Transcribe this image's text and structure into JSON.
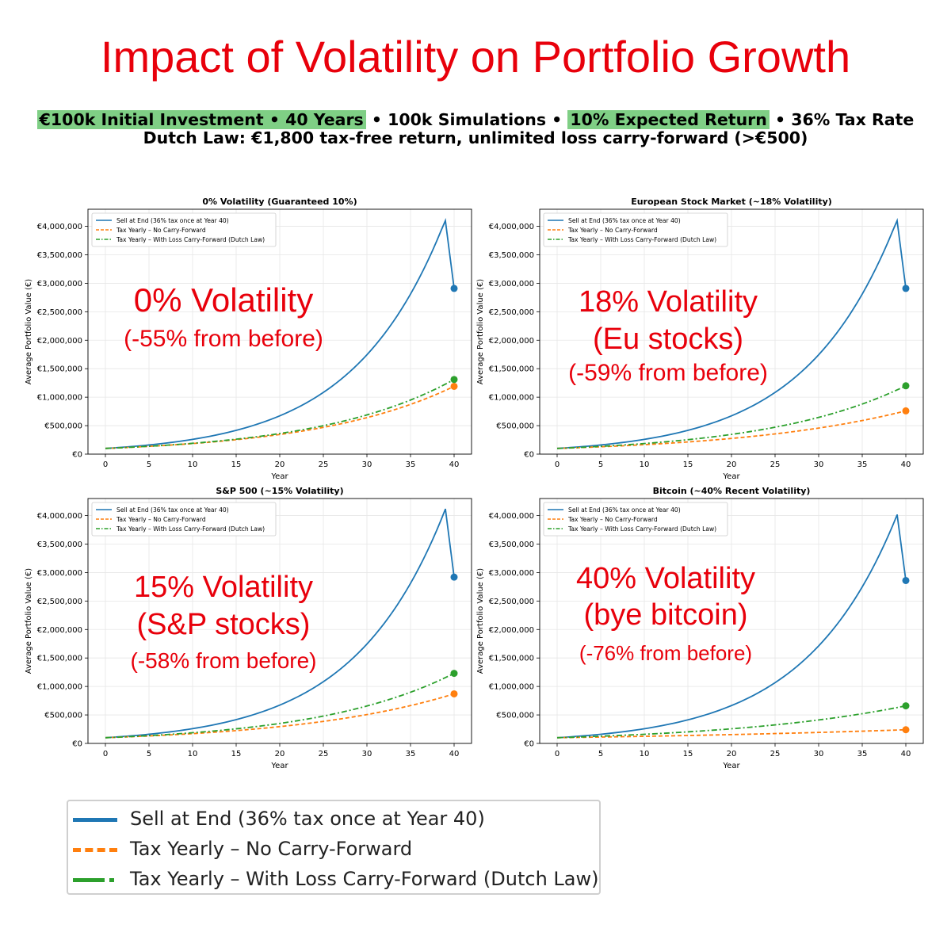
{
  "title": "Impact of Volatility on Portfolio Growth",
  "subtitle_line1": {
    "hl1": "€100k Initial Investment • 40 Years",
    "mid": " • 100k Simulations • ",
    "hl2": "10% Expected Return",
    "end": " • 36% Tax Rate"
  },
  "subtitle_line2": "Dutch Law: €1,800 tax-free return, unlimited loss carry-forward (>€500)",
  "colors": {
    "sell": "#1f77b4",
    "no_carry": "#ff7f0e",
    "carry": "#2ca02c",
    "annotation": "#e8000b",
    "highlight": "#7fcf85"
  },
  "legend": [
    {
      "label": "Sell at End (36% tax once at Year 40)",
      "color": "#1f77b4",
      "style": "solid"
    },
    {
      "label": "Tax Yearly – No Carry-Forward",
      "color": "#ff7f0e",
      "style": "dashed"
    },
    {
      "label": "Tax Yearly – With Loss Carry-Forward (Dutch Law)",
      "color": "#2ca02c",
      "style": "dashdot"
    }
  ],
  "chart_data": [
    {
      "type": "line",
      "title": "0% Volatility (Guaranteed 10%)",
      "xlabel": "Year",
      "ylabel": "Average Portfolio Value (€)",
      "xlim": [
        0,
        40
      ],
      "ylim": [
        0,
        4300000
      ],
      "xticks": [
        0,
        5,
        10,
        15,
        20,
        25,
        30,
        35,
        40
      ],
      "yticks": [
        0,
        500000,
        1000000,
        1500000,
        2000000,
        2500000,
        3000000,
        3500000,
        4000000
      ],
      "ytick_labels": [
        "€0",
        "€500,000",
        "€1,000,000",
        "€1,500,000",
        "€2,000,000",
        "€2,500,000",
        "€3,000,000",
        "€3,500,000",
        "€4,000,000"
      ],
      "grid": true,
      "legend_position": "upper-left",
      "series": [
        {
          "name": "Sell at End (36% tax once at Year 40)",
          "growth": 0.1,
          "peak_year": 39,
          "peak_value": 4100000,
          "end_value": 2910000
        },
        {
          "name": "Tax Yearly – No Carry-Forward",
          "growth": 0.0654,
          "end_value": 1190000
        },
        {
          "name": "Tax Yearly – With Loss Carry-Forward (Dutch Law)",
          "growth": 0.0672,
          "end_value": 1310000
        }
      ],
      "annotation": [
        "0% Volatility",
        "(-55% from before)"
      ]
    },
    {
      "type": "line",
      "title": "European Stock Market (~18% Volatility)",
      "xlabel": "Year",
      "ylabel": "Average Portfolio Value (€)",
      "xlim": [
        0,
        40
      ],
      "ylim": [
        0,
        4300000
      ],
      "xticks": [
        0,
        5,
        10,
        15,
        20,
        25,
        30,
        35,
        40
      ],
      "yticks": [
        0,
        500000,
        1000000,
        1500000,
        2000000,
        2500000,
        3000000,
        3500000,
        4000000
      ],
      "ytick_labels": [
        "€0",
        "€500,000",
        "€1,000,000",
        "€1,500,000",
        "€2,000,000",
        "€2,500,000",
        "€3,000,000",
        "€3,500,000",
        "€4,000,000"
      ],
      "grid": true,
      "legend_position": "upper-left",
      "series": [
        {
          "name": "Sell at End (36% tax once at Year 40)",
          "growth": 0.1,
          "peak_year": 39,
          "peak_value": 4100000,
          "end_value": 2910000
        },
        {
          "name": "Tax Yearly – No Carry-Forward",
          "growth": 0.0519,
          "end_value": 760000
        },
        {
          "name": "Tax Yearly – With Loss Carry-Forward (Dutch Law)",
          "growth": 0.0645,
          "end_value": 1200000
        }
      ],
      "annotation": [
        "18% Volatility",
        "(Eu stocks)",
        "(-59% from before)"
      ]
    },
    {
      "type": "line",
      "title": "S&P 500 (~15% Volatility)",
      "xlabel": "Year",
      "ylabel": "Average Portfolio Value (€)",
      "xlim": [
        0,
        40
      ],
      "ylim": [
        0,
        4300000
      ],
      "xticks": [
        0,
        5,
        10,
        15,
        20,
        25,
        30,
        35,
        40
      ],
      "yticks": [
        0,
        500000,
        1000000,
        1500000,
        2000000,
        2500000,
        3000000,
        3500000,
        4000000
      ],
      "ytick_labels": [
        "€0",
        "€500,000",
        "€1,000,000",
        "€1,500,000",
        "€2,000,000",
        "€2,500,000",
        "€3,000,000",
        "€3,500,000",
        "€4,000,000"
      ],
      "grid": true,
      "legend_position": "upper-left",
      "series": [
        {
          "name": "Sell at End (36% tax once at Year 40)",
          "growth": 0.1,
          "peak_year": 39,
          "peak_value": 4120000,
          "end_value": 2920000
        },
        {
          "name": "Tax Yearly – No Carry-Forward",
          "growth": 0.0555,
          "end_value": 870000
        },
        {
          "name": "Tax Yearly – With Loss Carry-Forward (Dutch Law)",
          "growth": 0.0653,
          "end_value": 1230000
        }
      ],
      "annotation": [
        "15% Volatility",
        "(S&P stocks)",
        "(-58% from before)"
      ]
    },
    {
      "type": "line",
      "title": "Bitcoin (~40% Recent Volatility)",
      "xlabel": "Year",
      "ylabel": "Average Portfolio Value (€)",
      "xlim": [
        0,
        40
      ],
      "ylim": [
        0,
        4300000
      ],
      "xticks": [
        0,
        5,
        10,
        15,
        20,
        25,
        30,
        35,
        40
      ],
      "yticks": [
        0,
        500000,
        1000000,
        1500000,
        2000000,
        2500000,
        3000000,
        3500000,
        4000000
      ],
      "ytick_labels": [
        "€0",
        "€500,000",
        "€1,000,000",
        "€1,500,000",
        "€2,000,000",
        "€2,500,000",
        "€3,000,000",
        "€3,500,000",
        "€4,000,000"
      ],
      "grid": true,
      "legend_position": "upper-left",
      "series": [
        {
          "name": "Sell at End (36% tax once at Year 40)",
          "growth": 0.0993,
          "peak_year": 39,
          "peak_value": 4020000,
          "end_value": 2860000
        },
        {
          "name": "Tax Yearly – No Carry-Forward",
          "growth": 0.0222,
          "end_value": 240000
        },
        {
          "name": "Tax Yearly – With Loss Carry-Forward (Dutch Law)",
          "growth": 0.0471,
          "end_value": 660000
        }
      ],
      "annotation": [
        "40% Volatility",
        "(bye bitcoin)",
        "(-76% from before)"
      ]
    }
  ]
}
